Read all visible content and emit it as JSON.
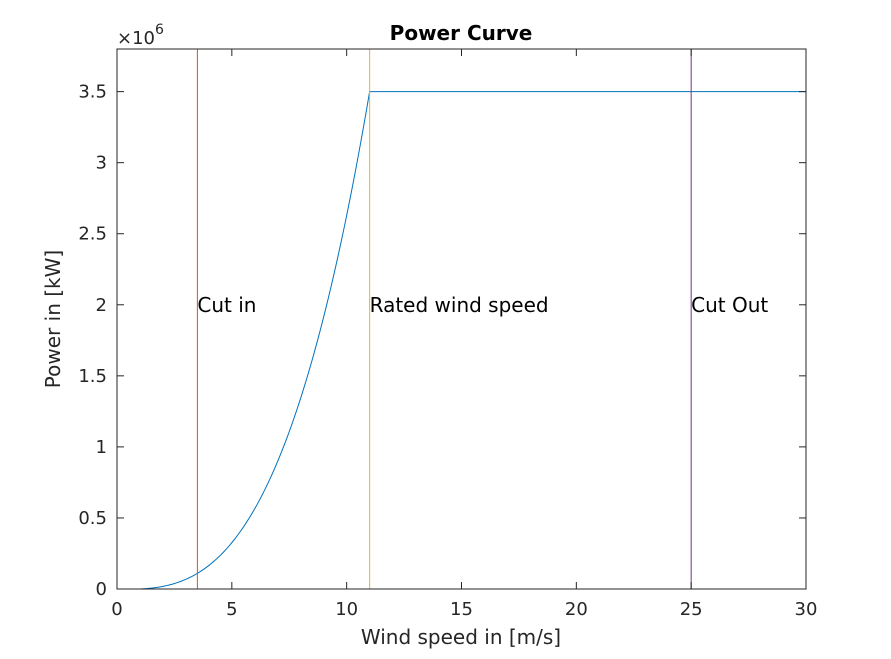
{
  "chart_data": {
    "type": "line",
    "title": "Power Curve",
    "xlabel": "Wind speed in [m/s]",
    "ylabel": "Power in [kW]",
    "exponent": {
      "base": "×10",
      "power": "6"
    },
    "xlim": [
      0,
      30
    ],
    "ylim": [
      0,
      3800000
    ],
    "xticks": [
      0,
      5,
      10,
      15,
      20,
      25,
      30
    ],
    "xtick_labels": [
      "0",
      "5",
      "10",
      "15",
      "20",
      "25",
      "30"
    ],
    "yticks": [
      0,
      500000,
      1000000,
      1500000,
      2000000,
      2500000,
      3000000,
      3500000
    ],
    "ytick_labels": [
      "0",
      "0.5",
      "1",
      "1.5",
      "2",
      "2.5",
      "3",
      "3.5"
    ],
    "grid": false,
    "curve": {
      "color": "#0072BD",
      "cubic_start": 1,
      "cubic_end": 11,
      "rated_power": 3500000,
      "x_end": 30,
      "x": [
        1,
        1.5,
        2,
        2.5,
        3,
        3.5,
        4,
        4.5,
        5,
        5.5,
        6,
        6.5,
        7,
        7.5,
        8,
        8.5,
        9,
        9.5,
        10,
        10.5,
        11,
        30
      ],
      "y": [
        2630,
        8880,
        21040,
        41090,
        71000,
        112750,
        168300,
        239630,
        328710,
        437520,
        568020,
        722200,
        902030,
        1109490,
        1346560,
        1615210,
        1917430,
        2255200,
        2630480,
        3045260,
        3500000,
        3500000
      ]
    },
    "vertical_lines": [
      {
        "x": 3.5,
        "color": "#D95319",
        "label": "Cut in",
        "label_y": 2000000
      },
      {
        "x": 11,
        "color": "#EDB120",
        "label": "Rated wind speed",
        "label_y": 2000000
      },
      {
        "x": 25,
        "color": "#7E2F8E",
        "label": "Cut Out",
        "label_y": 2000000
      }
    ]
  }
}
